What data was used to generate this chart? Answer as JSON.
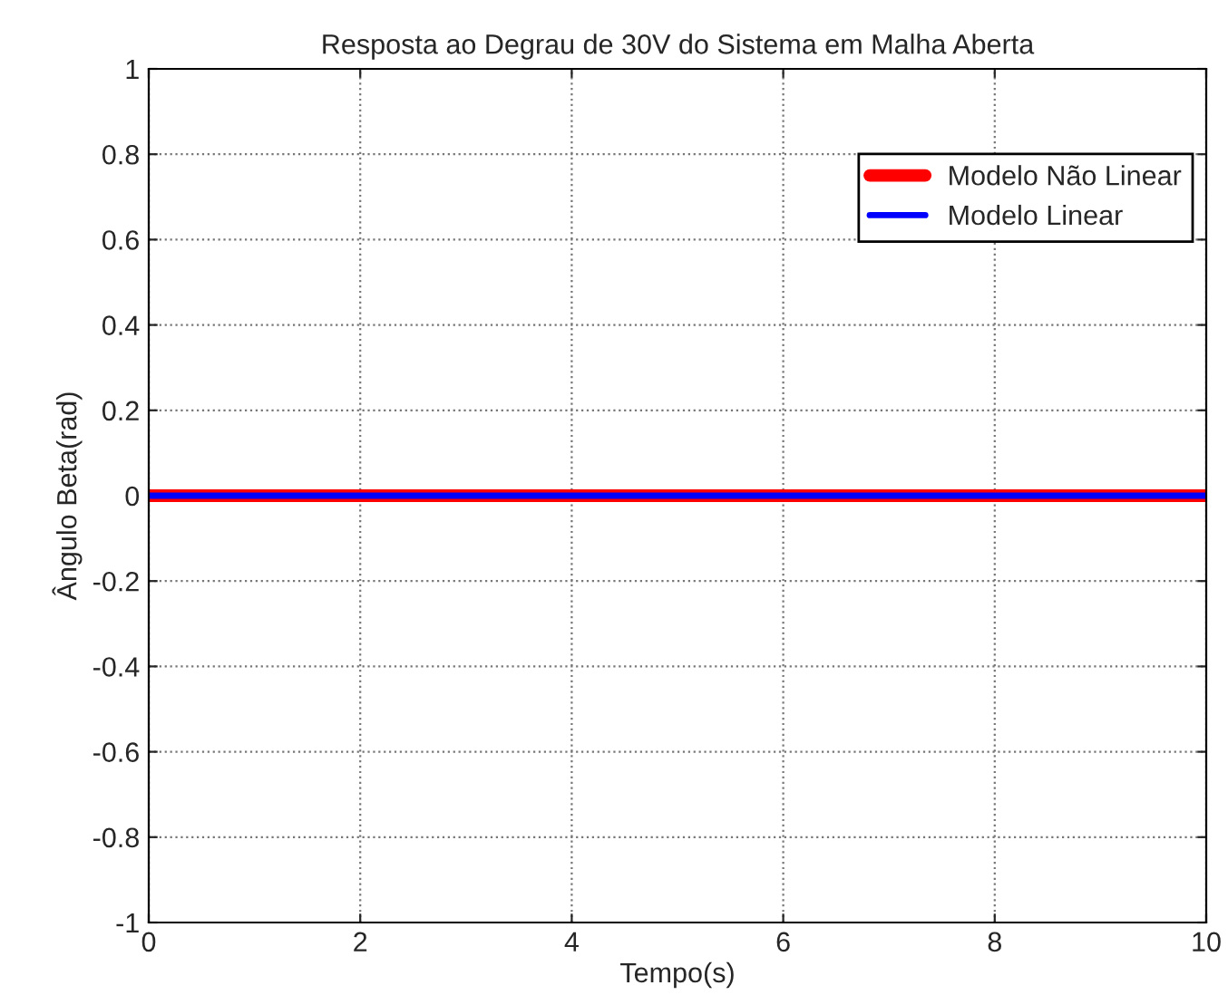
{
  "chart_data": {
    "type": "line",
    "title": "Resposta ao Degrau de 30V do Sistema em Malha Aberta",
    "xlabel": "Tempo(s)",
    "ylabel": "Ângulo Beta(rad)",
    "x": [
      0,
      10
    ],
    "series": [
      {
        "name": "Modelo Não Linear",
        "color": "#ff0000",
        "values": [
          0,
          0
        ]
      },
      {
        "name": "Modelo Linear",
        "color": "#0000ff",
        "values": [
          0,
          0
        ]
      }
    ],
    "xlim": [
      0,
      10
    ],
    "xticks": [
      0,
      2,
      4,
      6,
      8,
      10
    ],
    "ylim": [
      -1,
      1
    ],
    "yticks": [
      -1,
      -0.8,
      -0.6,
      -0.4,
      -0.2,
      0,
      0.2,
      0.4,
      0.6,
      0.8,
      1
    ],
    "grid": true,
    "legend": "top right",
    "line_style": "solid",
    "marker": "none"
  }
}
